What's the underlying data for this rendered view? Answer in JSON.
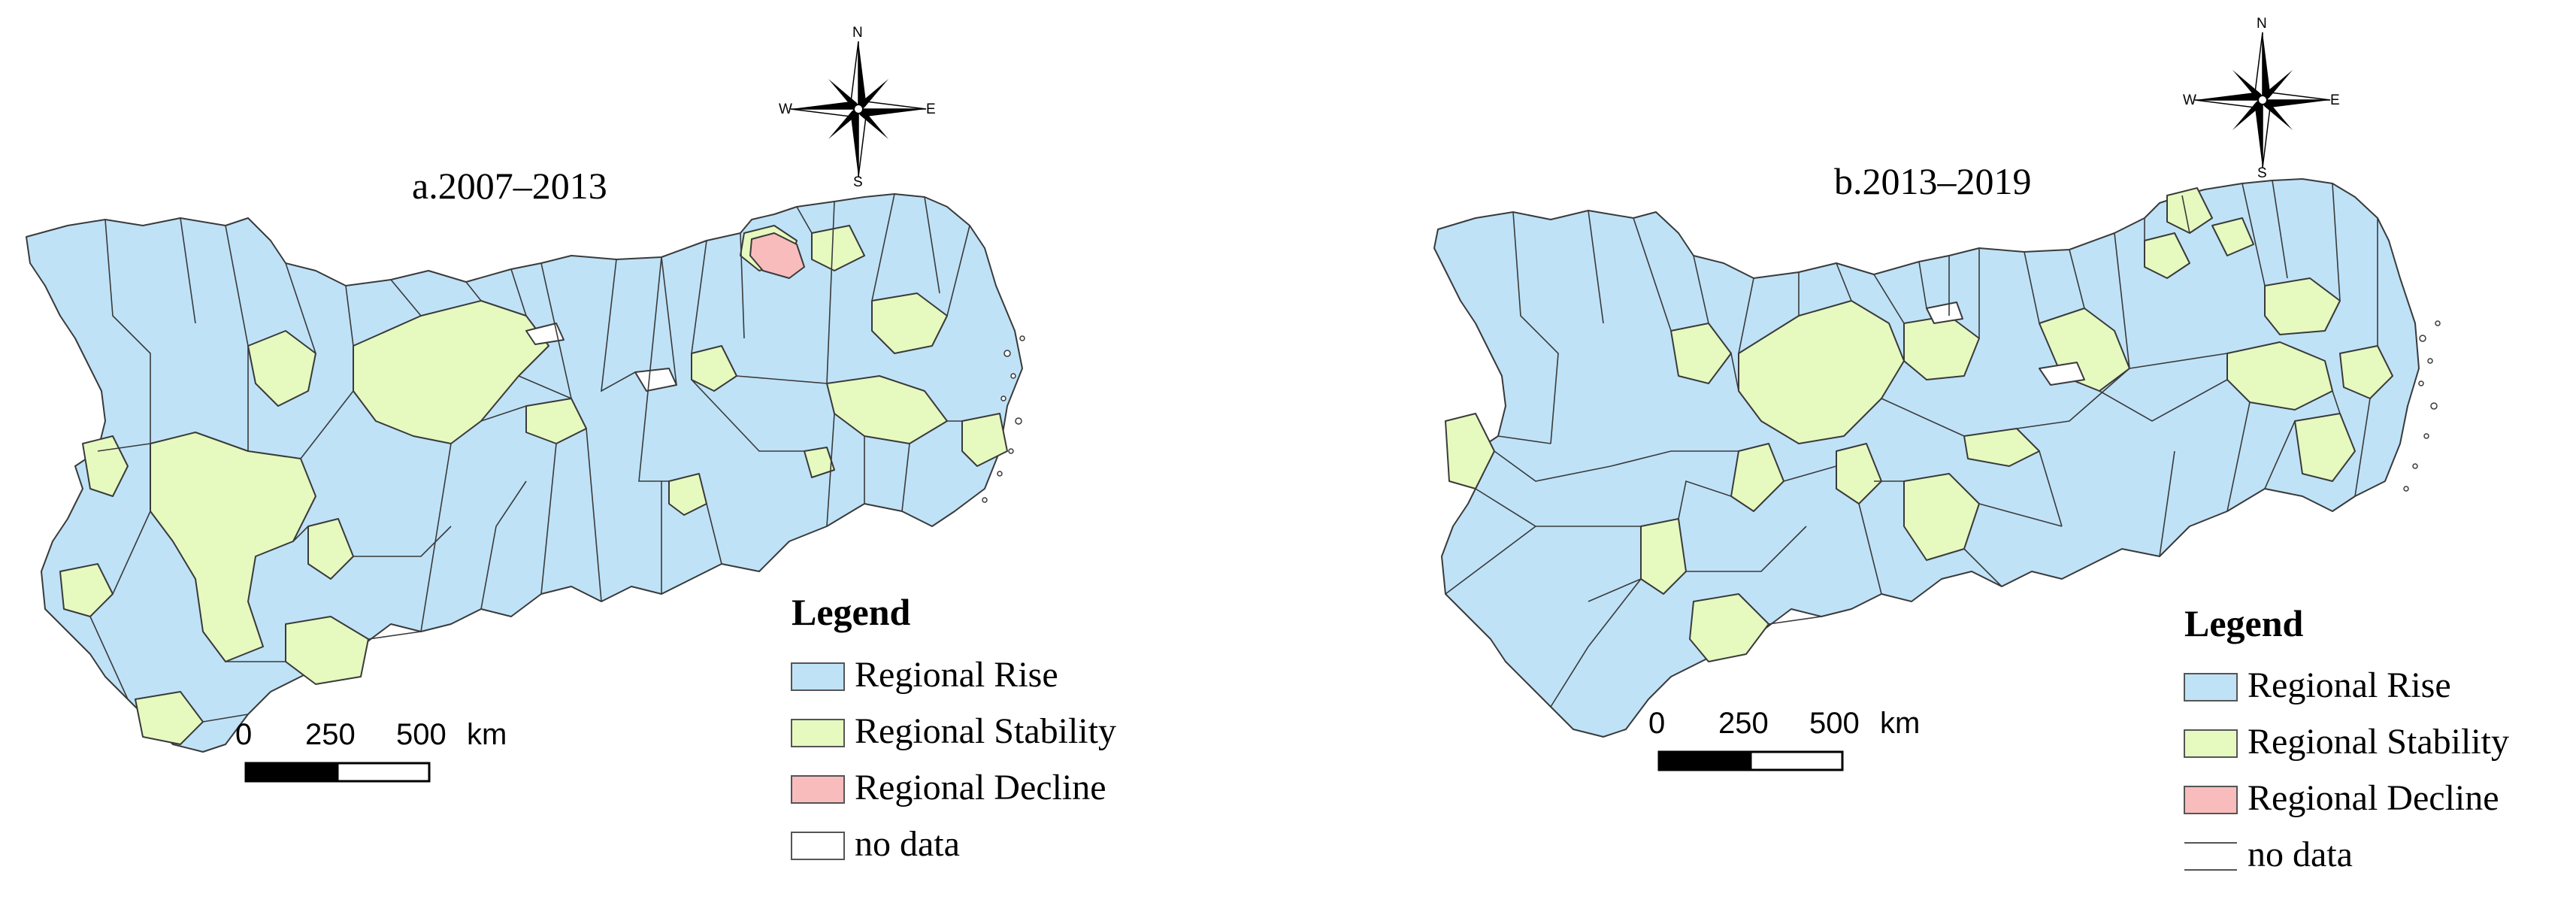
{
  "colors": {
    "rise": "#bfe2f7",
    "stability": "#e6f9bf",
    "decline": "#f8bcbc",
    "no_data": "#ffffff",
    "boundary": "#3a3a3a"
  },
  "compass": {
    "north": "N",
    "south": "S",
    "east": "E",
    "west": "W"
  },
  "maps": [
    {
      "title": "a.2007–2013",
      "legend_title": "Legend",
      "legend": [
        {
          "label": "Regional Rise",
          "color_key": "rise"
        },
        {
          "label": "Regional Stability",
          "color_key": "stability"
        },
        {
          "label": "Regional Decline",
          "color_key": "decline"
        },
        {
          "label": "no data",
          "color_key": "no_data"
        }
      ],
      "scale": {
        "ticks": [
          "0",
          "250",
          "500"
        ],
        "unit": "km"
      }
    },
    {
      "title": "b.2013–2019",
      "legend_title": "Legend",
      "legend": [
        {
          "label": "Regional Rise",
          "color_key": "rise"
        },
        {
          "label": "Regional Stability",
          "color_key": "stability"
        },
        {
          "label": "Regional Decline",
          "color_key": "decline"
        },
        {
          "label": "no data",
          "color_key": "no_data"
        }
      ],
      "scale": {
        "ticks": [
          "0",
          "250",
          "500"
        ],
        "unit": "km"
      }
    }
  ]
}
